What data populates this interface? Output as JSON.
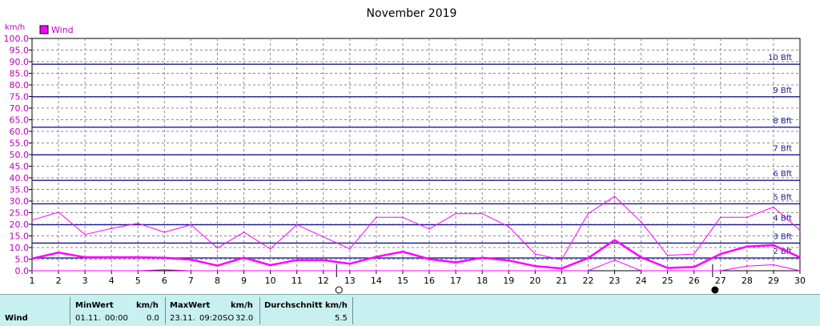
{
  "chart_data": {
    "type": "line",
    "title": "November 2019",
    "y_unit": "km/h",
    "ylim": [
      0,
      100
    ],
    "y_ticks": [
      "0.0",
      "5.0",
      "10.0",
      "15.0",
      "20.0",
      "25.0",
      "30.0",
      "35.0",
      "40.0",
      "45.0",
      "50.0",
      "55.0",
      "60.0",
      "65.0",
      "70.0",
      "75.0",
      "80.0",
      "85.0",
      "90.0",
      "95.0",
      "100.0"
    ],
    "x_ticks": [
      "1",
      "2",
      "3",
      "4",
      "5",
      "6",
      "7",
      "8",
      "9",
      "10",
      "11",
      "12",
      "13",
      "14",
      "15",
      "16",
      "17",
      "18",
      "19",
      "20",
      "21",
      "22",
      "23",
      "24",
      "25",
      "26",
      "27",
      "28",
      "29",
      "30"
    ],
    "grid": true,
    "legend": {
      "position": "top-left",
      "entries": [
        {
          "name": "Wind",
          "color": "#ff00ff"
        }
      ]
    },
    "beaufort_lines": [
      {
        "label": "2 Bft",
        "value": 5.5
      },
      {
        "label": "3 Bft",
        "value": 11.9
      },
      {
        "label": "4 Bft",
        "value": 19.8
      },
      {
        "label": "5 Bft",
        "value": 28.8
      },
      {
        "label": "6 Bft",
        "value": 38.9
      },
      {
        "label": "7 Bft",
        "value": 49.9
      },
      {
        "label": "8 Bft",
        "value": 61.8
      },
      {
        "label": "9 Bft",
        "value": 74.9
      },
      {
        "label": "10 Bft",
        "value": 88.9
      }
    ],
    "moon_phases": [
      {
        "day": 12.5,
        "phase": "full"
      },
      {
        "day": 26.7,
        "phase": "new"
      }
    ],
    "x": [
      1,
      2,
      3,
      4,
      5,
      6,
      7,
      8,
      9,
      10,
      11,
      12,
      13,
      14,
      15,
      16,
      17,
      18,
      19,
      20,
      21,
      22,
      23,
      24,
      25,
      26,
      27,
      28,
      29,
      30
    ],
    "series": [
      {
        "name": "Wind",
        "role": "max",
        "color": "#ff00ff",
        "values": [
          21.8,
          25.2,
          15.6,
          18.2,
          20.4,
          16.6,
          19.8,
          9.8,
          16.6,
          9.4,
          19.8,
          14.6,
          9.4,
          23.0,
          23.0,
          18.0,
          24.6,
          24.6,
          19.0,
          7.2,
          4.8,
          24.6,
          32.0,
          21.0,
          6.6,
          7.2,
          23.0,
          23.0,
          27.4,
          17.4
        ]
      },
      {
        "name": "Wind",
        "role": "avg",
        "color": "#ff00ff",
        "values": [
          5.2,
          7.8,
          5.8,
          5.8,
          5.8,
          5.6,
          4.8,
          2.2,
          5.6,
          2.4,
          4.6,
          4.6,
          3.0,
          6.0,
          8.2,
          5.0,
          3.6,
          5.6,
          4.4,
          2.0,
          1.0,
          5.4,
          13.2,
          5.8,
          1.2,
          1.6,
          7.2,
          10.4,
          11.0,
          5.8
        ]
      },
      {
        "name": "Wind",
        "role": "min",
        "color": "#ff00ff",
        "values": [
          0,
          0,
          0,
          0,
          0,
          0.4,
          0,
          0,
          0,
          0,
          0,
          0,
          0,
          0,
          0,
          0,
          0,
          0,
          0,
          0,
          0,
          0,
          4.6,
          0,
          0,
          0,
          0,
          2.0,
          2.6,
          0
        ]
      }
    ]
  },
  "stats": {
    "row_label": "Wind",
    "min": {
      "header": "MinWert",
      "unit": "km/h",
      "date": "01.11.",
      "time": "00:00",
      "value": "0.0"
    },
    "max": {
      "header": "MaxWert",
      "unit": "km/h",
      "date": "23.11.",
      "time": "09:20",
      "dir": "SO",
      "value": "32.0"
    },
    "avg": {
      "header": "Durchschnitt km/h",
      "value": "5.5"
    }
  }
}
